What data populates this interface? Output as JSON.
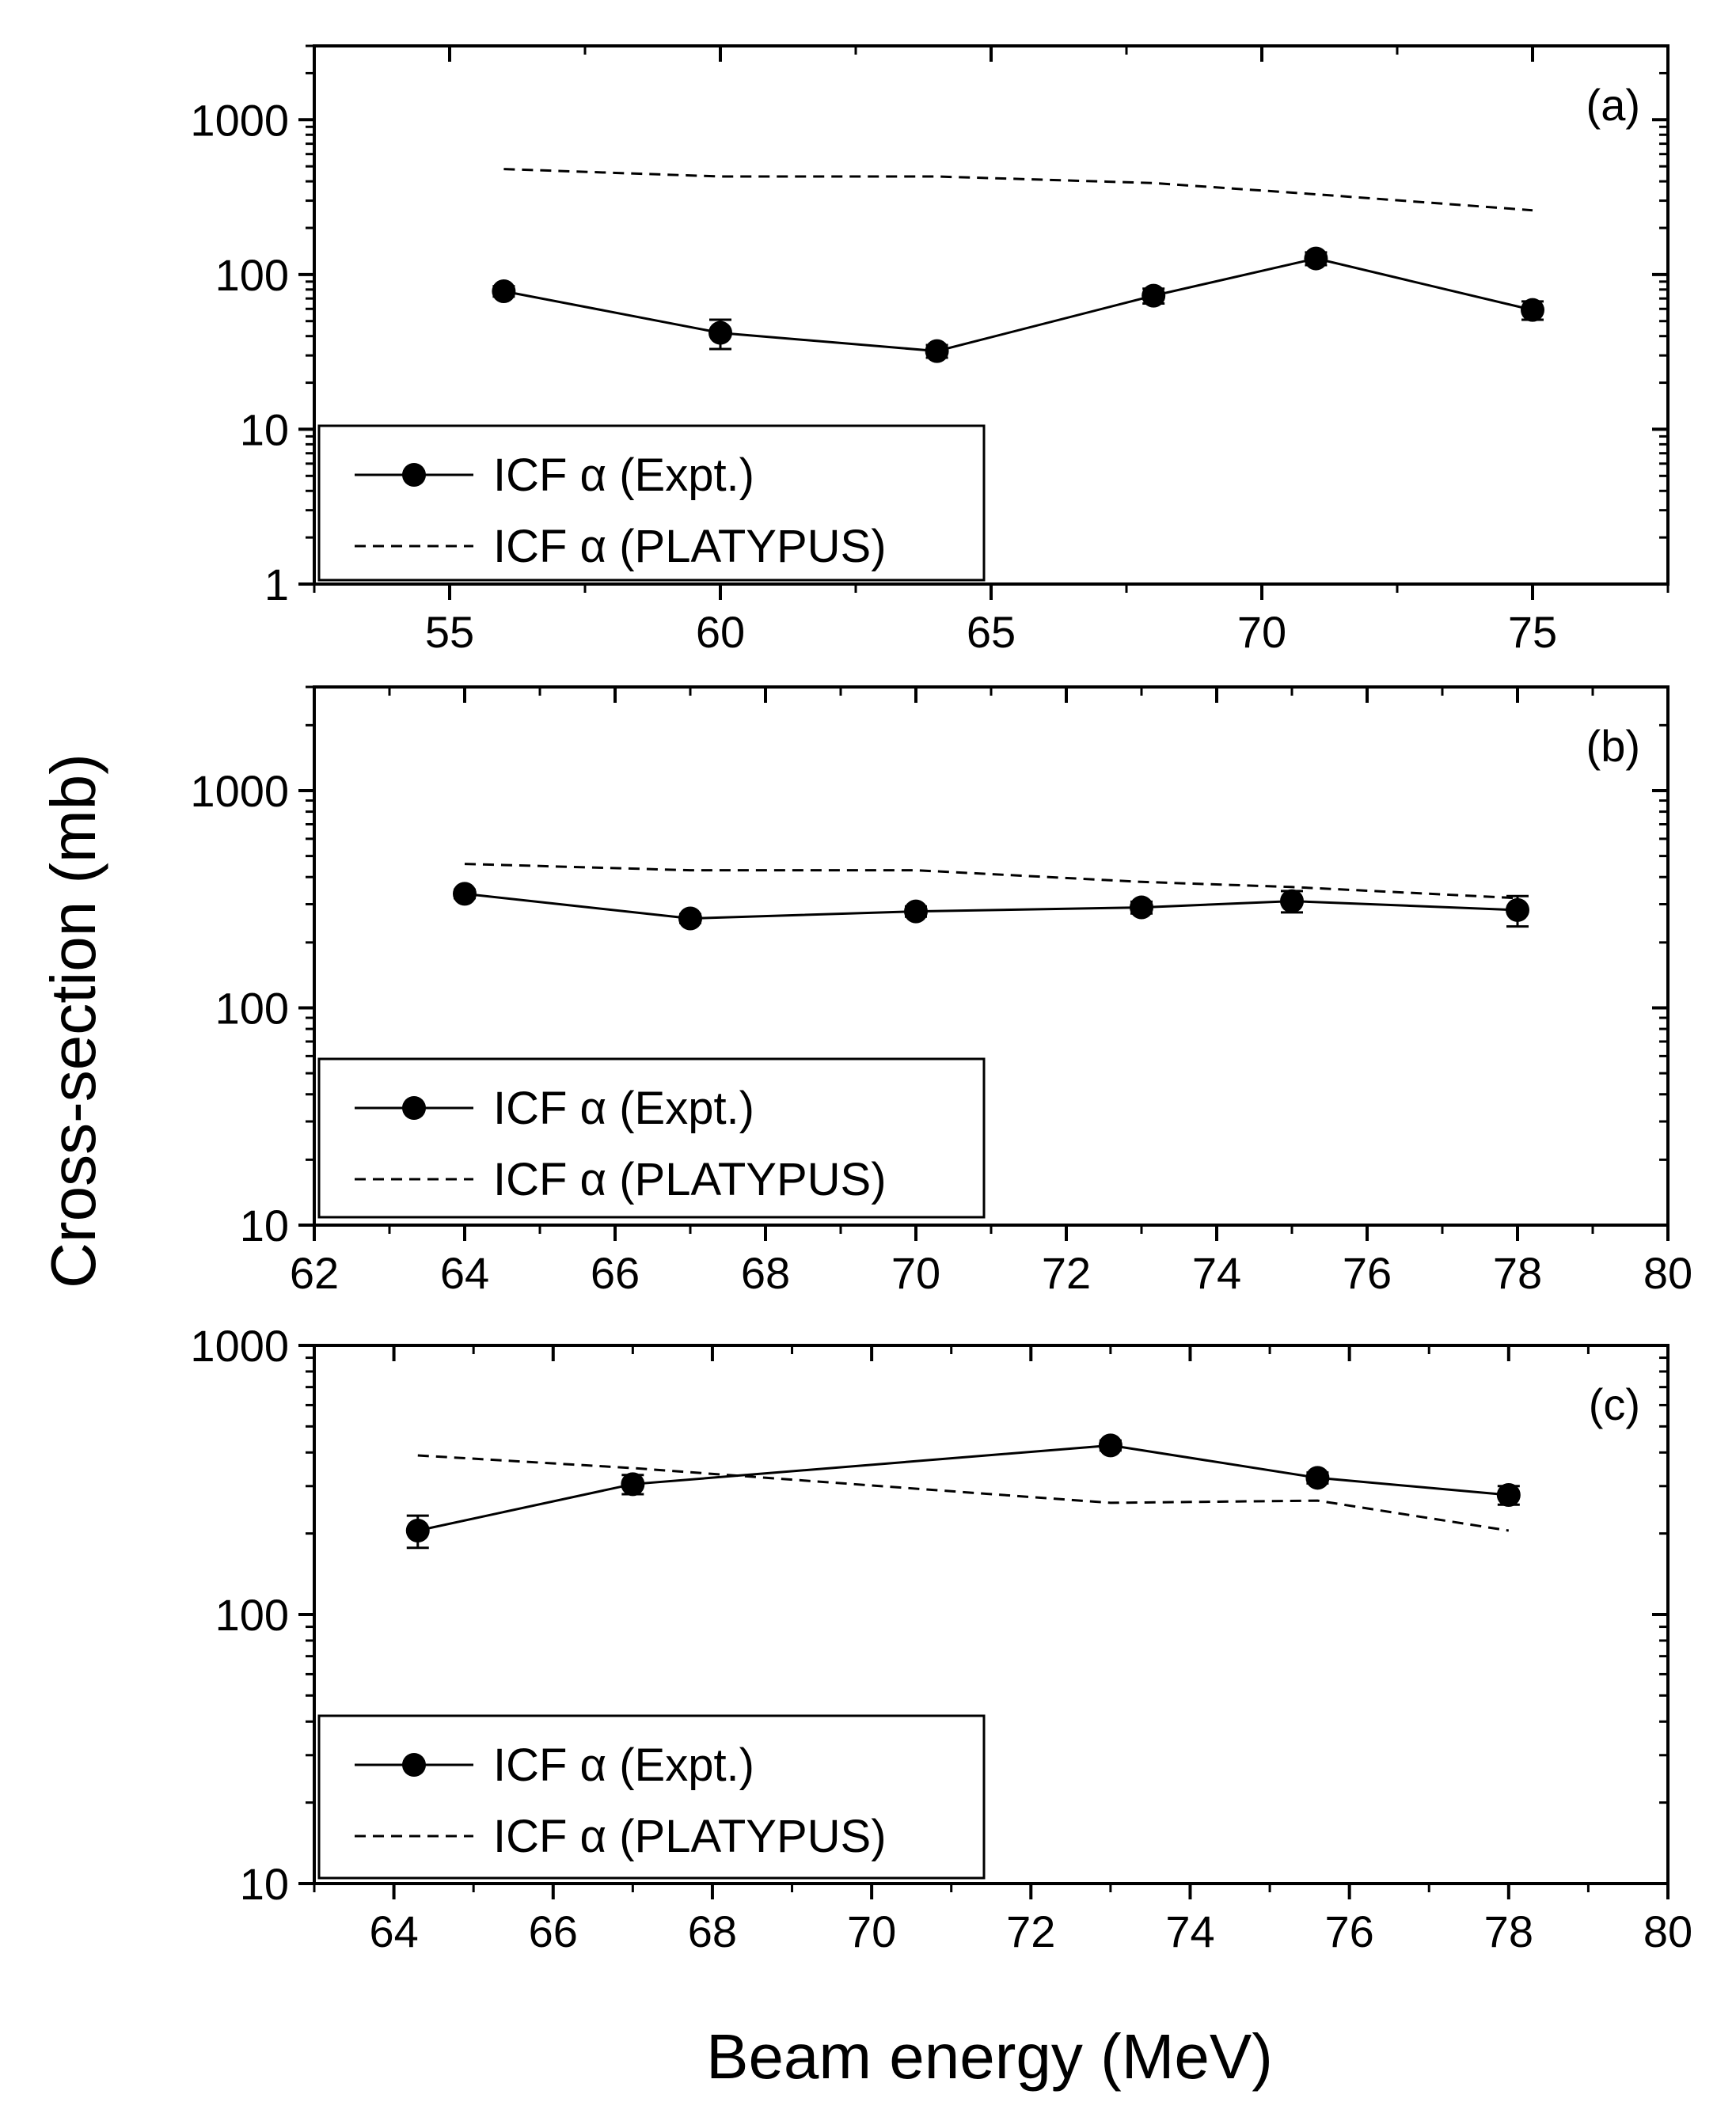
{
  "figure": {
    "ylabel": "Cross-section (mb)",
    "xlabel": "Beam energy (MeV)"
  },
  "chart_data": [
    {
      "type": "line",
      "panel": "(a)",
      "yscale": "log",
      "xlim": [
        52.5,
        77.5
      ],
      "ylim": [
        1,
        3000
      ],
      "xticks": [
        55,
        60,
        65,
        70,
        75
      ],
      "xminor": [
        52.5,
        57.5,
        62.5,
        67.5,
        72.5,
        77.5
      ],
      "yticks": [
        1,
        10,
        100,
        1000
      ],
      "ytick_labels": [
        "1",
        "10",
        "100",
        "1000"
      ],
      "legend_position": "bottom-left",
      "series": [
        {
          "name": "ICF α (Expt.)",
          "style": "solid-marker",
          "x": [
            56,
            60,
            64,
            68,
            71,
            75
          ],
          "y": [
            78,
            42,
            32,
            73,
            127,
            59
          ],
          "err": [
            6,
            9,
            3,
            8,
            12,
            8
          ]
        },
        {
          "name": "ICF α (PLATYPUS)",
          "style": "dashed",
          "x": [
            56,
            60,
            64,
            68,
            71,
            75
          ],
          "y": [
            480,
            430,
            430,
            390,
            330,
            260
          ]
        }
      ]
    },
    {
      "type": "line",
      "panel": "(b)",
      "yscale": "log",
      "xlim": [
        62,
        80
      ],
      "ylim": [
        10,
        3000
      ],
      "xticks": [
        62,
        64,
        66,
        68,
        70,
        72,
        74,
        76,
        78,
        80
      ],
      "xminor": [
        63,
        65,
        67,
        69,
        71,
        73,
        75,
        77,
        79
      ],
      "yticks": [
        10,
        100,
        1000
      ],
      "ytick_labels": [
        "10",
        "100",
        "1000"
      ],
      "legend_position": "bottom-left",
      "series": [
        {
          "name": "ICF α (Expt.)",
          "style": "solid-marker",
          "x": [
            64,
            67,
            70,
            73,
            75,
            78
          ],
          "y": [
            335,
            258,
            278,
            290,
            310,
            282
          ],
          "err": [
            15,
            12,
            15,
            18,
            35,
            45
          ]
        },
        {
          "name": "ICF α (PLATYPUS)",
          "style": "dashed",
          "x": [
            64,
            67,
            70,
            73,
            75,
            78
          ],
          "y": [
            460,
            430,
            430,
            380,
            360,
            320
          ]
        }
      ]
    },
    {
      "type": "line",
      "panel": "(c)",
      "yscale": "log",
      "xlim": [
        63,
        80
      ],
      "ylim": [
        10,
        1000
      ],
      "xticks": [
        64,
        66,
        68,
        70,
        72,
        74,
        76,
        78,
        80
      ],
      "xminor": [
        63,
        65,
        67,
        69,
        71,
        73,
        75,
        77,
        79
      ],
      "yticks": [
        10,
        100,
        1000
      ],
      "ytick_labels": [
        "10",
        "100",
        "1000"
      ],
      "legend_position": "bottom-left",
      "series": [
        {
          "name": "ICF α (Expt.)",
          "style": "solid-marker",
          "x": [
            64.3,
            67,
            73,
            75.6,
            78
          ],
          "y": [
            205,
            305,
            425,
            322,
            278
          ],
          "err": [
            28,
            25,
            18,
            15,
            22
          ]
        },
        {
          "name": "ICF α (PLATYPUS)",
          "style": "dashed",
          "x": [
            64.3,
            67,
            73,
            75.6,
            78
          ],
          "y": [
            390,
            350,
            260,
            265,
            205
          ]
        }
      ]
    }
  ]
}
